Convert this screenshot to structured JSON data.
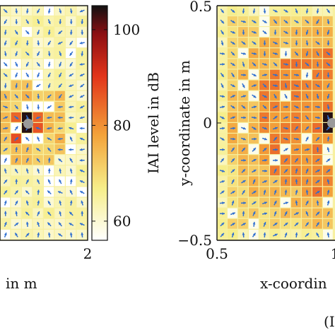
{
  "chart_data": [
    {
      "type": "heatmap",
      "panel": "left",
      "title": "",
      "xlabel": "in m",
      "ylabel": "",
      "x_ticks": [
        "2"
      ],
      "y_ticks": [],
      "source_marker": "gray-dot",
      "arrows": "blue-vector-field",
      "palette": {
        "low": "#ffffff",
        "mid": "#f4d33c",
        "high": "#d81e13",
        "max": "#1a0a0a"
      },
      "colorbar": {
        "label": "IAI level in dB",
        "ticks": [
          "100",
          "80",
          "60"
        ],
        "range": [
          56,
          105
        ]
      }
    },
    {
      "type": "heatmap",
      "panel": "right",
      "title": "",
      "xlabel": "x-coordin",
      "ylabel": "y-coordinate in m",
      "x_ticks": [
        "0.5",
        "1"
      ],
      "y_ticks": [
        "0.5",
        "0",
        "−0.5"
      ],
      "source_marker": "gray-dot",
      "arrows": "blue-vector-field",
      "caption_fragment": "(I"
    }
  ]
}
